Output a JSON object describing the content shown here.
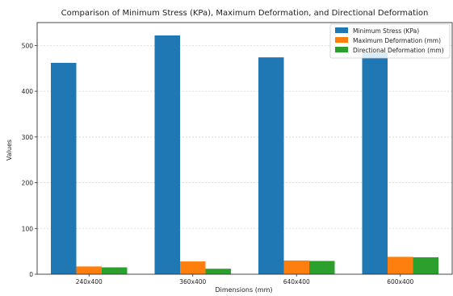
{
  "chart_data": {
    "type": "bar",
    "title": "Comparison of Minimum Stress (KPa), Maximum Deformation, and Directional Deformation",
    "xlabel": "Dimensions (mm)",
    "ylabel": "Values",
    "categories": [
      "240x400",
      "360x400",
      "640x400",
      "600x400"
    ],
    "ylim": [
      0,
      550
    ],
    "yticks": [
      0,
      100,
      200,
      300,
      400,
      500
    ],
    "grid": "horizontal",
    "legend_position": "top-right",
    "series": [
      {
        "name": "Minimum Stress (KPa)",
        "color": "#1f77b4",
        "values": [
          462,
          522,
          474,
          485
        ]
      },
      {
        "name": "Maximum Deformation (mm)",
        "color": "#ff7f0e",
        "values": [
          17,
          28,
          30,
          38
        ]
      },
      {
        "name": "Directional Deformation (mm)",
        "color": "#2ca02c",
        "values": [
          15,
          12,
          29,
          37
        ]
      }
    ]
  }
}
